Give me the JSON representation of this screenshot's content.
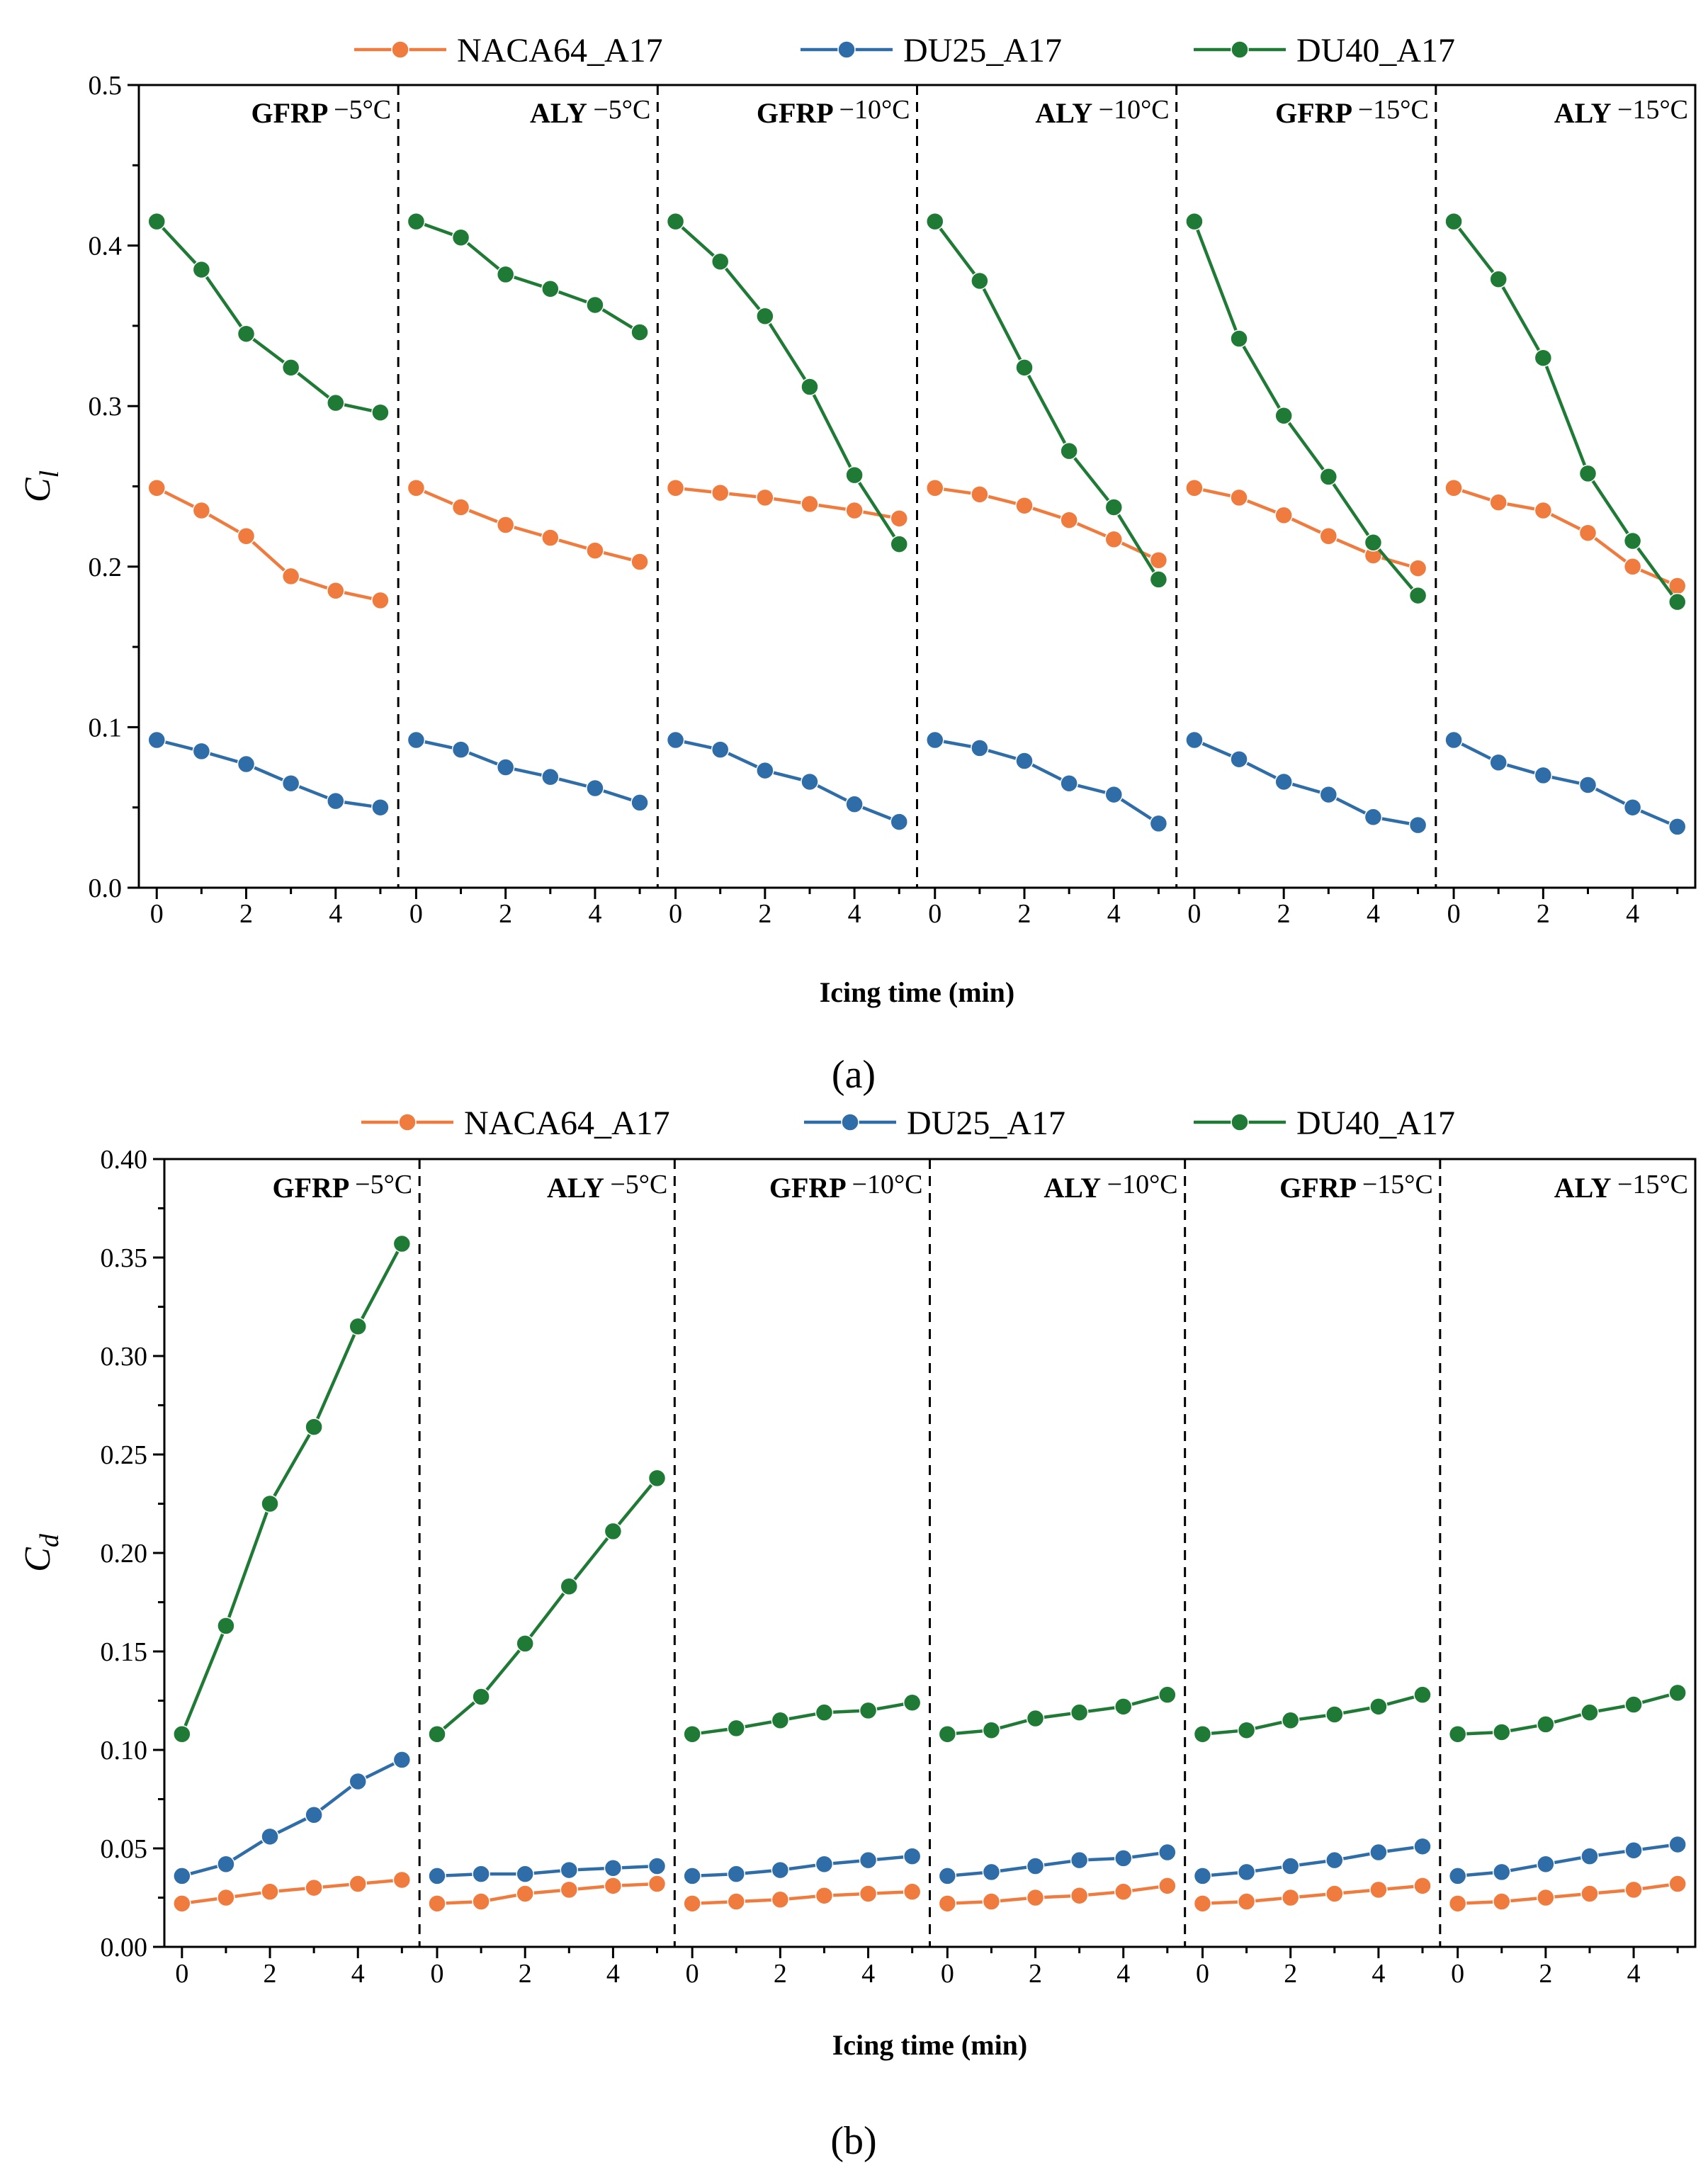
{
  "figure": {
    "sub_captions": [
      "(a)",
      "(b)"
    ]
  },
  "chart_data": [
    {
      "id": "a",
      "type": "line",
      "caption": "(a)",
      "title": "",
      "xlabel": "Icing time (min)",
      "ylabel_main": "C",
      "ylabel_sub": "l",
      "ylim": [
        0,
        0.5
      ],
      "yticks": [
        "0.0",
        "0.1",
        "0.2",
        "0.3",
        "0.4",
        "0.5"
      ],
      "ytick_values": [
        0,
        0.1,
        0.2,
        0.3,
        0.4,
        0.5
      ],
      "xtick_labels": [
        "0",
        "2",
        "4"
      ],
      "xtick_values": [
        0,
        2,
        4
      ],
      "xlim_per_panel": [
        -0.4,
        5.4
      ],
      "grid": false,
      "legend_position": "top",
      "legend": [
        "NACA64_A17",
        "DU25_A17",
        "DU40_A17"
      ],
      "panels": [
        {
          "material": "GFRP",
          "temp": "−5°C"
        },
        {
          "material": "ALY",
          "temp": "−5°C"
        },
        {
          "material": "GFRP",
          "temp": "−10°C"
        },
        {
          "material": "ALY",
          "temp": "−10°C"
        },
        {
          "material": "GFRP",
          "temp": "−15°C"
        },
        {
          "material": "ALY",
          "temp": "−15°C"
        }
      ],
      "x": [
        0,
        1,
        2,
        3,
        4,
        5
      ],
      "series": [
        {
          "name": "NACA64_A17",
          "color": "#F07B3F",
          "panels": [
            [
              0.249,
              0.235,
              0.219,
              0.194,
              0.185,
              0.179
            ],
            [
              0.249,
              0.237,
              0.226,
              0.218,
              0.21,
              0.203
            ],
            [
              0.249,
              0.246,
              0.243,
              0.239,
              0.235,
              0.23
            ],
            [
              0.249,
              0.245,
              0.238,
              0.229,
              0.217,
              0.204
            ],
            [
              0.249,
              0.243,
              0.232,
              0.219,
              0.207,
              0.199
            ],
            [
              0.249,
              0.24,
              0.235,
              0.221,
              0.2,
              0.188
            ]
          ]
        },
        {
          "name": "DU25_A17",
          "color": "#2F6DA8",
          "panels": [
            [
              0.092,
              0.085,
              0.077,
              0.065,
              0.054,
              0.05
            ],
            [
              0.092,
              0.086,
              0.075,
              0.069,
              0.062,
              0.053
            ],
            [
              0.092,
              0.086,
              0.073,
              0.066,
              0.052,
              0.041
            ],
            [
              0.092,
              0.087,
              0.079,
              0.065,
              0.058,
              0.04
            ],
            [
              0.092,
              0.08,
              0.066,
              0.058,
              0.044,
              0.039
            ],
            [
              0.092,
              0.078,
              0.07,
              0.064,
              0.05,
              0.038
            ]
          ]
        },
        {
          "name": "DU40_A17",
          "color": "#1F7A35",
          "panels": [
            [
              0.415,
              0.385,
              0.345,
              0.324,
              0.302,
              0.296
            ],
            [
              0.415,
              0.405,
              0.382,
              0.373,
              0.363,
              0.346
            ],
            [
              0.415,
              0.39,
              0.356,
              0.312,
              0.257,
              0.214
            ],
            [
              0.415,
              0.378,
              0.324,
              0.272,
              0.237,
              0.192
            ],
            [
              0.415,
              0.342,
              0.294,
              0.256,
              0.215,
              0.182
            ],
            [
              0.415,
              0.379,
              0.33,
              0.258,
              0.216,
              0.178
            ]
          ]
        }
      ]
    },
    {
      "id": "b",
      "type": "line",
      "caption": "(b)",
      "title": "",
      "xlabel": "Icing time (min)",
      "ylabel_main": "C",
      "ylabel_sub": "d",
      "ylim": [
        0,
        0.4
      ],
      "yticks": [
        "0.00",
        "0.05",
        "0.10",
        "0.15",
        "0.20",
        "0.25",
        "0.30",
        "0.35",
        "0.40"
      ],
      "ytick_values": [
        0,
        0.05,
        0.1,
        0.15,
        0.2,
        0.25,
        0.3,
        0.35,
        0.4
      ],
      "xtick_labels": [
        "0",
        "2",
        "4"
      ],
      "xtick_values": [
        0,
        2,
        4
      ],
      "xlim_per_panel": [
        -0.4,
        5.4
      ],
      "grid": false,
      "legend_position": "top",
      "legend": [
        "NACA64_A17",
        "DU25_A17",
        "DU40_A17"
      ],
      "panels": [
        {
          "material": "GFRP",
          "temp": "−5°C"
        },
        {
          "material": "ALY",
          "temp": "−5°C"
        },
        {
          "material": "GFRP",
          "temp": "−10°C"
        },
        {
          "material": "ALY",
          "temp": "−10°C"
        },
        {
          "material": "GFRP",
          "temp": "−15°C"
        },
        {
          "material": "ALY",
          "temp": "−15°C"
        }
      ],
      "x": [
        0,
        1,
        2,
        3,
        4,
        5
      ],
      "series": [
        {
          "name": "NACA64_A17",
          "color": "#F07B3F",
          "panels": [
            [
              0.022,
              0.025,
              0.028,
              0.03,
              0.032,
              0.034
            ],
            [
              0.022,
              0.023,
              0.027,
              0.029,
              0.031,
              0.032
            ],
            [
              0.022,
              0.023,
              0.024,
              0.026,
              0.027,
              0.028
            ],
            [
              0.022,
              0.023,
              0.025,
              0.026,
              0.028,
              0.031
            ],
            [
              0.022,
              0.023,
              0.025,
              0.027,
              0.029,
              0.031
            ],
            [
              0.022,
              0.023,
              0.025,
              0.027,
              0.029,
              0.032
            ]
          ]
        },
        {
          "name": "DU25_A17",
          "color": "#2F6DA8",
          "panels": [
            [
              0.036,
              0.042,
              0.056,
              0.067,
              0.084,
              0.095
            ],
            [
              0.036,
              0.037,
              0.037,
              0.039,
              0.04,
              0.041
            ],
            [
              0.036,
              0.037,
              0.039,
              0.042,
              0.044,
              0.046
            ],
            [
              0.036,
              0.038,
              0.041,
              0.044,
              0.045,
              0.048
            ],
            [
              0.036,
              0.038,
              0.041,
              0.044,
              0.048,
              0.051
            ],
            [
              0.036,
              0.038,
              0.042,
              0.046,
              0.049,
              0.052
            ]
          ]
        },
        {
          "name": "DU40_A17",
          "color": "#1F7A35",
          "panels": [
            [
              0.108,
              0.163,
              0.225,
              0.264,
              0.315,
              0.357
            ],
            [
              0.108,
              0.127,
              0.154,
              0.183,
              0.211,
              0.238
            ],
            [
              0.108,
              0.111,
              0.115,
              0.119,
              0.12,
              0.124
            ],
            [
              0.108,
              0.11,
              0.116,
              0.119,
              0.122,
              0.128
            ],
            [
              0.108,
              0.11,
              0.115,
              0.118,
              0.122,
              0.128
            ],
            [
              0.108,
              0.109,
              0.113,
              0.119,
              0.123,
              0.129
            ]
          ]
        }
      ]
    }
  ]
}
